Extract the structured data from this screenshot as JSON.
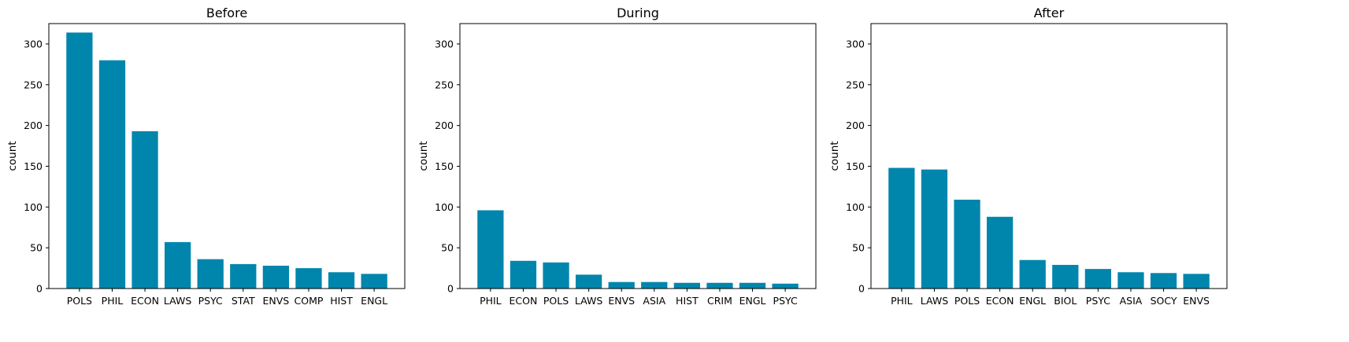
{
  "bar_color": "#0086ad",
  "chart_data": [
    {
      "type": "bar",
      "title": "Before",
      "xlabel": "",
      "ylabel": "count",
      "ylim": [
        0,
        325
      ],
      "yticks": [
        0,
        50,
        100,
        150,
        200,
        250,
        300
      ],
      "categories": [
        "POLS",
        "PHIL",
        "ECON",
        "LAWS",
        "PSYC",
        "STAT",
        "ENVS",
        "COMP",
        "HIST",
        "ENGL"
      ],
      "values": [
        314,
        280,
        193,
        57,
        36,
        30,
        28,
        25,
        20,
        18
      ]
    },
    {
      "type": "bar",
      "title": "During",
      "xlabel": "",
      "ylabel": "count",
      "ylim": [
        0,
        325
      ],
      "yticks": [
        0,
        50,
        100,
        150,
        200,
        250,
        300
      ],
      "categories": [
        "PHIL",
        "ECON",
        "POLS",
        "LAWS",
        "ENVS",
        "ASIA",
        "HIST",
        "CRIM",
        "ENGL",
        "PSYC"
      ],
      "values": [
        96,
        34,
        32,
        17,
        8,
        8,
        7,
        7,
        7,
        6
      ]
    },
    {
      "type": "bar",
      "title": "After",
      "xlabel": "",
      "ylabel": "count",
      "ylim": [
        0,
        325
      ],
      "yticks": [
        0,
        50,
        100,
        150,
        200,
        250,
        300
      ],
      "categories": [
        "PHIL",
        "LAWS",
        "POLS",
        "ECON",
        "ENGL",
        "BIOL",
        "PSYC",
        "ASIA",
        "SOCY",
        "ENVS"
      ],
      "values": [
        148,
        146,
        109,
        88,
        35,
        29,
        24,
        20,
        19,
        18
      ]
    }
  ]
}
